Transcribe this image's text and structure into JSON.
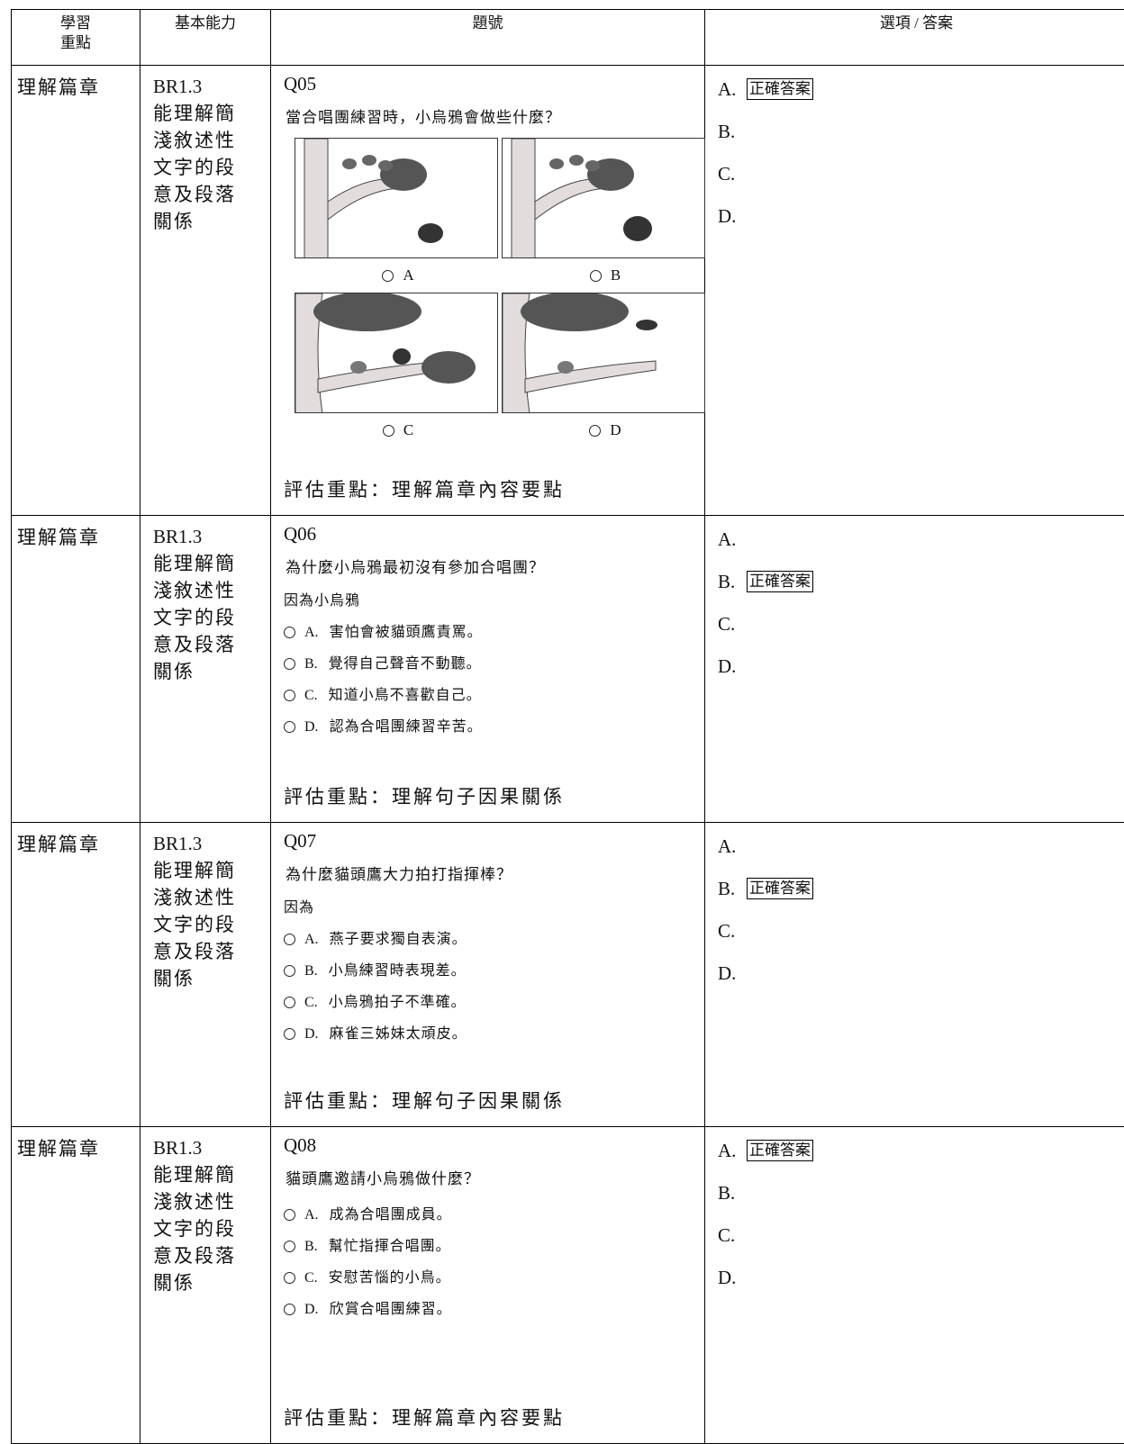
{
  "table": {
    "header": [
      [
        "學習",
        "重點"
      ],
      "基本能力",
      "題號",
      "選項 / 答案"
    ],
    "rows": [
      {
        "area": "理解篇章",
        "skill_code": "BR1.3",
        "skill_lines": [
          "能理解簡",
          "淺敘述性",
          "文字的段",
          "意及段落",
          "關係"
        ],
        "qid": "Q05",
        "question": "當合唱團練習時，小烏鴉會做些什麼？",
        "images": [
          "A",
          "B",
          "C",
          "D"
        ],
        "focus": "評估重點：理解篇章內容要點",
        "answers": [
          {
            "letter": "A.",
            "mark": "正確答案"
          },
          {
            "letter": "B."
          },
          {
            "letter": "C."
          },
          {
            "letter": "D."
          }
        ]
      },
      {
        "area": "理解篇章",
        "skill_code": "BR1.3",
        "skill_lines": [
          "能理解簡",
          "淺敘述性",
          "文字的段",
          "意及段落",
          "關係"
        ],
        "qid": "Q06",
        "question": "為什麼小烏鴉最初沒有參加合唱團？",
        "intro": "因為小烏鴉",
        "options": [
          {
            "letter": "A.",
            "text": "害怕會被貓頭鷹責罵。"
          },
          {
            "letter": "B.",
            "text": "覺得自己聲音不動聽。"
          },
          {
            "letter": "C.",
            "text": "知道小鳥不喜歡自己。"
          },
          {
            "letter": "D.",
            "text": "認為合唱團練習辛苦。"
          }
        ],
        "focus": "評估重點：理解句子因果關係",
        "answers": [
          {
            "letter": "A."
          },
          {
            "letter": "B.",
            "mark": "正確答案"
          },
          {
            "letter": "C."
          },
          {
            "letter": "D."
          }
        ]
      },
      {
        "area": "理解篇章",
        "skill_code": "BR1.3",
        "skill_lines": [
          "能理解簡",
          "淺敘述性",
          "文字的段",
          "意及段落",
          "關係"
        ],
        "qid": "Q07",
        "question": "為什麼貓頭鷹大力拍打指揮棒？",
        "intro": "因為",
        "options": [
          {
            "letter": "A.",
            "text": "燕子要求獨自表演。"
          },
          {
            "letter": "B.",
            "text": "小鳥練習時表現差。"
          },
          {
            "letter": "C.",
            "text": "小烏鴉拍子不準確。"
          },
          {
            "letter": "D.",
            "text": "麻雀三姊妹太頑皮。"
          }
        ],
        "focus": "評估重點：理解句子因果關係",
        "answers": [
          {
            "letter": "A."
          },
          {
            "letter": "B.",
            "mark": "正確答案"
          },
          {
            "letter": "C."
          },
          {
            "letter": "D."
          }
        ]
      },
      {
        "area": "理解篇章",
        "skill_code": "BR1.3",
        "skill_lines": [
          "能理解簡",
          "淺敘述性",
          "文字的段",
          "意及段落",
          "關係"
        ],
        "qid": "Q08",
        "question": "貓頭鷹邀請小烏鴉做什麼？",
        "options": [
          {
            "letter": "A.",
            "text": "成為合唱團成員。"
          },
          {
            "letter": "B.",
            "text": "幫忙指揮合唱團。"
          },
          {
            "letter": "C.",
            "text": "安慰苦惱的小鳥。"
          },
          {
            "letter": "D.",
            "text": "欣賞合唱團練習。"
          }
        ],
        "focus": "評估重點：理解篇章內容要點",
        "answers": [
          {
            "letter": "A.",
            "mark": "正確答案"
          },
          {
            "letter": "B."
          },
          {
            "letter": "C."
          },
          {
            "letter": "D."
          }
        ]
      }
    ]
  }
}
